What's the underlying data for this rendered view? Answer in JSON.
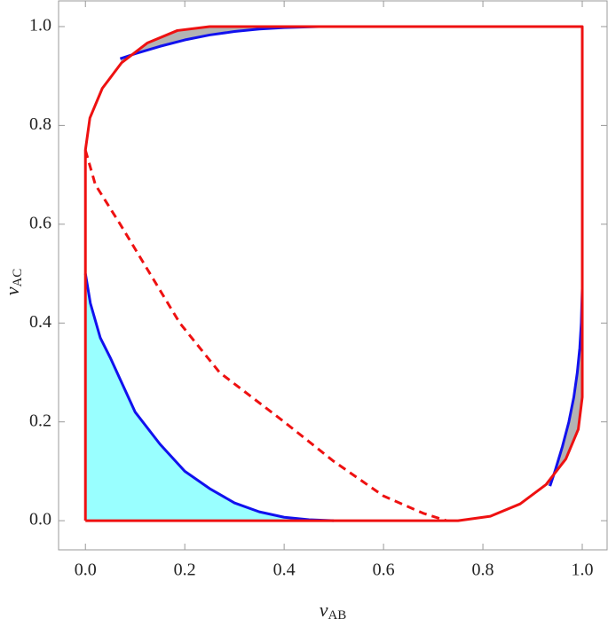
{
  "chart_data": {
    "type": "line",
    "xlabel": {
      "base": "v",
      "sub": "AB"
    },
    "ylabel": {
      "base": "v",
      "sub": "AC"
    },
    "xlim": [
      -0.054,
      1.05
    ],
    "ylim": [
      -0.059,
      1.052
    ],
    "xticks": [
      {
        "value": 0,
        "label": "0.0"
      },
      {
        "value": 0.2,
        "label": "0.2"
      },
      {
        "value": 0.4,
        "label": "0.4"
      },
      {
        "value": 0.6,
        "label": "0.6"
      },
      {
        "value": 0.8,
        "label": "0.8"
      },
      {
        "value": 1,
        "label": "1.0"
      }
    ],
    "yticks": [
      {
        "value": 0,
        "label": "0.0"
      },
      {
        "value": 0.2,
        "label": "0.2"
      },
      {
        "value": 0.4,
        "label": "0.4"
      },
      {
        "value": 0.6,
        "label": "0.6"
      },
      {
        "value": 0.8,
        "label": "0.8"
      },
      {
        "value": 1,
        "label": "1.0"
      }
    ],
    "series": [
      {
        "color": "#99ffff",
        "fill": true,
        "x": [
          0,
          0.01,
          0.03,
          0.05,
          0.1,
          0.15,
          0.2,
          0.25,
          0.3,
          0.35,
          0.4,
          0.45,
          0.5,
          0
        ],
        "y": [
          0.5,
          0.44,
          0.37,
          0.33,
          0.22,
          0.155,
          0.1,
          0.065,
          0.036,
          0.018,
          0.007,
          0.002,
          0,
          0
        ]
      },
      {
        "color": "#b3b3b3",
        "fill": true,
        "x": [
          0.07,
          0.1,
          0.15,
          0.2,
          0.25,
          0.3,
          0.35,
          0.4,
          0.47,
          0.25,
          0.185,
          0.125,
          0.073
        ],
        "y": [
          0.935,
          0.945,
          0.96,
          0.973,
          0.983,
          0.99,
          0.995,
          0.998,
          1,
          1,
          0.992,
          0.967,
          0.927
        ]
      },
      {
        "color": "#b3b3b3",
        "fill": true,
        "x": [
          0.935,
          0.945,
          0.96,
          0.973,
          0.983,
          0.99,
          0.995,
          0.998,
          1,
          1,
          0.992,
          0.967,
          0.927
        ],
        "y": [
          0.07,
          0.1,
          0.15,
          0.2,
          0.25,
          0.3,
          0.35,
          0.4,
          0.47,
          0.25,
          0.185,
          0.125,
          0.073
        ]
      },
      {
        "color": "#ee1111",
        "dash": true,
        "x": [
          0,
          0.02,
          0.07,
          0.13,
          0.19,
          0.27,
          0.4,
          0.5,
          0.6,
          0.68,
          0.727
        ],
        "y": [
          0.75,
          0.68,
          0.6,
          0.5,
          0.4,
          0.3,
          0.2,
          0.12,
          0.05,
          0.015,
          0
        ]
      },
      {
        "color": "#1111ee",
        "x": [
          0,
          0.01,
          0.03,
          0.05,
          0.1,
          0.15,
          0.2,
          0.25,
          0.3,
          0.35,
          0.4,
          0.45,
          0.5
        ],
        "y": [
          0.5,
          0.44,
          0.37,
          0.33,
          0.22,
          0.155,
          0.1,
          0.065,
          0.036,
          0.018,
          0.007,
          0.002,
          0
        ]
      },
      {
        "color": "#1111ee",
        "x": [
          0.07,
          0.1,
          0.15,
          0.2,
          0.25,
          0.3,
          0.35,
          0.4,
          0.47
        ],
        "y": [
          0.935,
          0.945,
          0.96,
          0.973,
          0.983,
          0.99,
          0.995,
          0.998,
          1
        ]
      },
      {
        "color": "#1111ee",
        "x": [
          0.935,
          0.945,
          0.96,
          0.973,
          0.983,
          0.99,
          0.995,
          0.998,
          1
        ],
        "y": [
          0.07,
          0.1,
          0.15,
          0.2,
          0.25,
          0.3,
          0.35,
          0.4,
          0.47
        ]
      },
      {
        "color": "#ee1111",
        "x": [
          0,
          0.75,
          0.815,
          0.875,
          0.927,
          0.967,
          0.992,
          1,
          1,
          0.25,
          0.185,
          0.125,
          0.073,
          0.034,
          0.009,
          0,
          0
        ],
        "y": [
          0,
          0,
          0.009,
          0.034,
          0.073,
          0.125,
          0.185,
          0.25,
          1,
          1,
          0.992,
          0.967,
          0.927,
          0.875,
          0.815,
          0.75,
          0
        ]
      }
    ]
  }
}
